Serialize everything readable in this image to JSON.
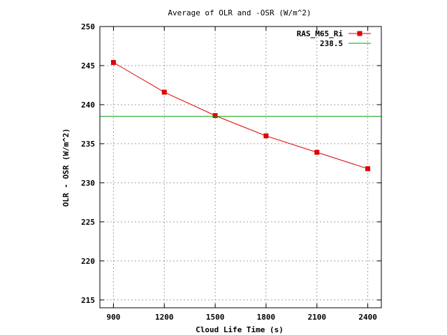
{
  "chart_data": {
    "type": "line",
    "title": "Average of OLR and -OSR (W/m^2)",
    "xlabel": "Cloud Life Time (s)",
    "ylabel": "OLR - OSR (W/m^2)",
    "xlim": [
      820,
      2480
    ],
    "ylim": [
      214,
      250
    ],
    "x_ticks": [
      900,
      1200,
      1500,
      1800,
      2100,
      2400
    ],
    "y_ticks": [
      215,
      220,
      225,
      230,
      235,
      240,
      245,
      250
    ],
    "grid": true,
    "legend_position": "top-right",
    "series": [
      {
        "name": "RAS_M65_Ri",
        "color": "#e00000",
        "marker": "square",
        "x": [
          900,
          1200,
          1500,
          1800,
          2100,
          2400
        ],
        "y": [
          245.4,
          241.6,
          238.6,
          236.0,
          233.9,
          231.8
        ]
      },
      {
        "name": "238.5",
        "color": "#00a000",
        "marker": "none",
        "constant": 238.5
      }
    ]
  }
}
